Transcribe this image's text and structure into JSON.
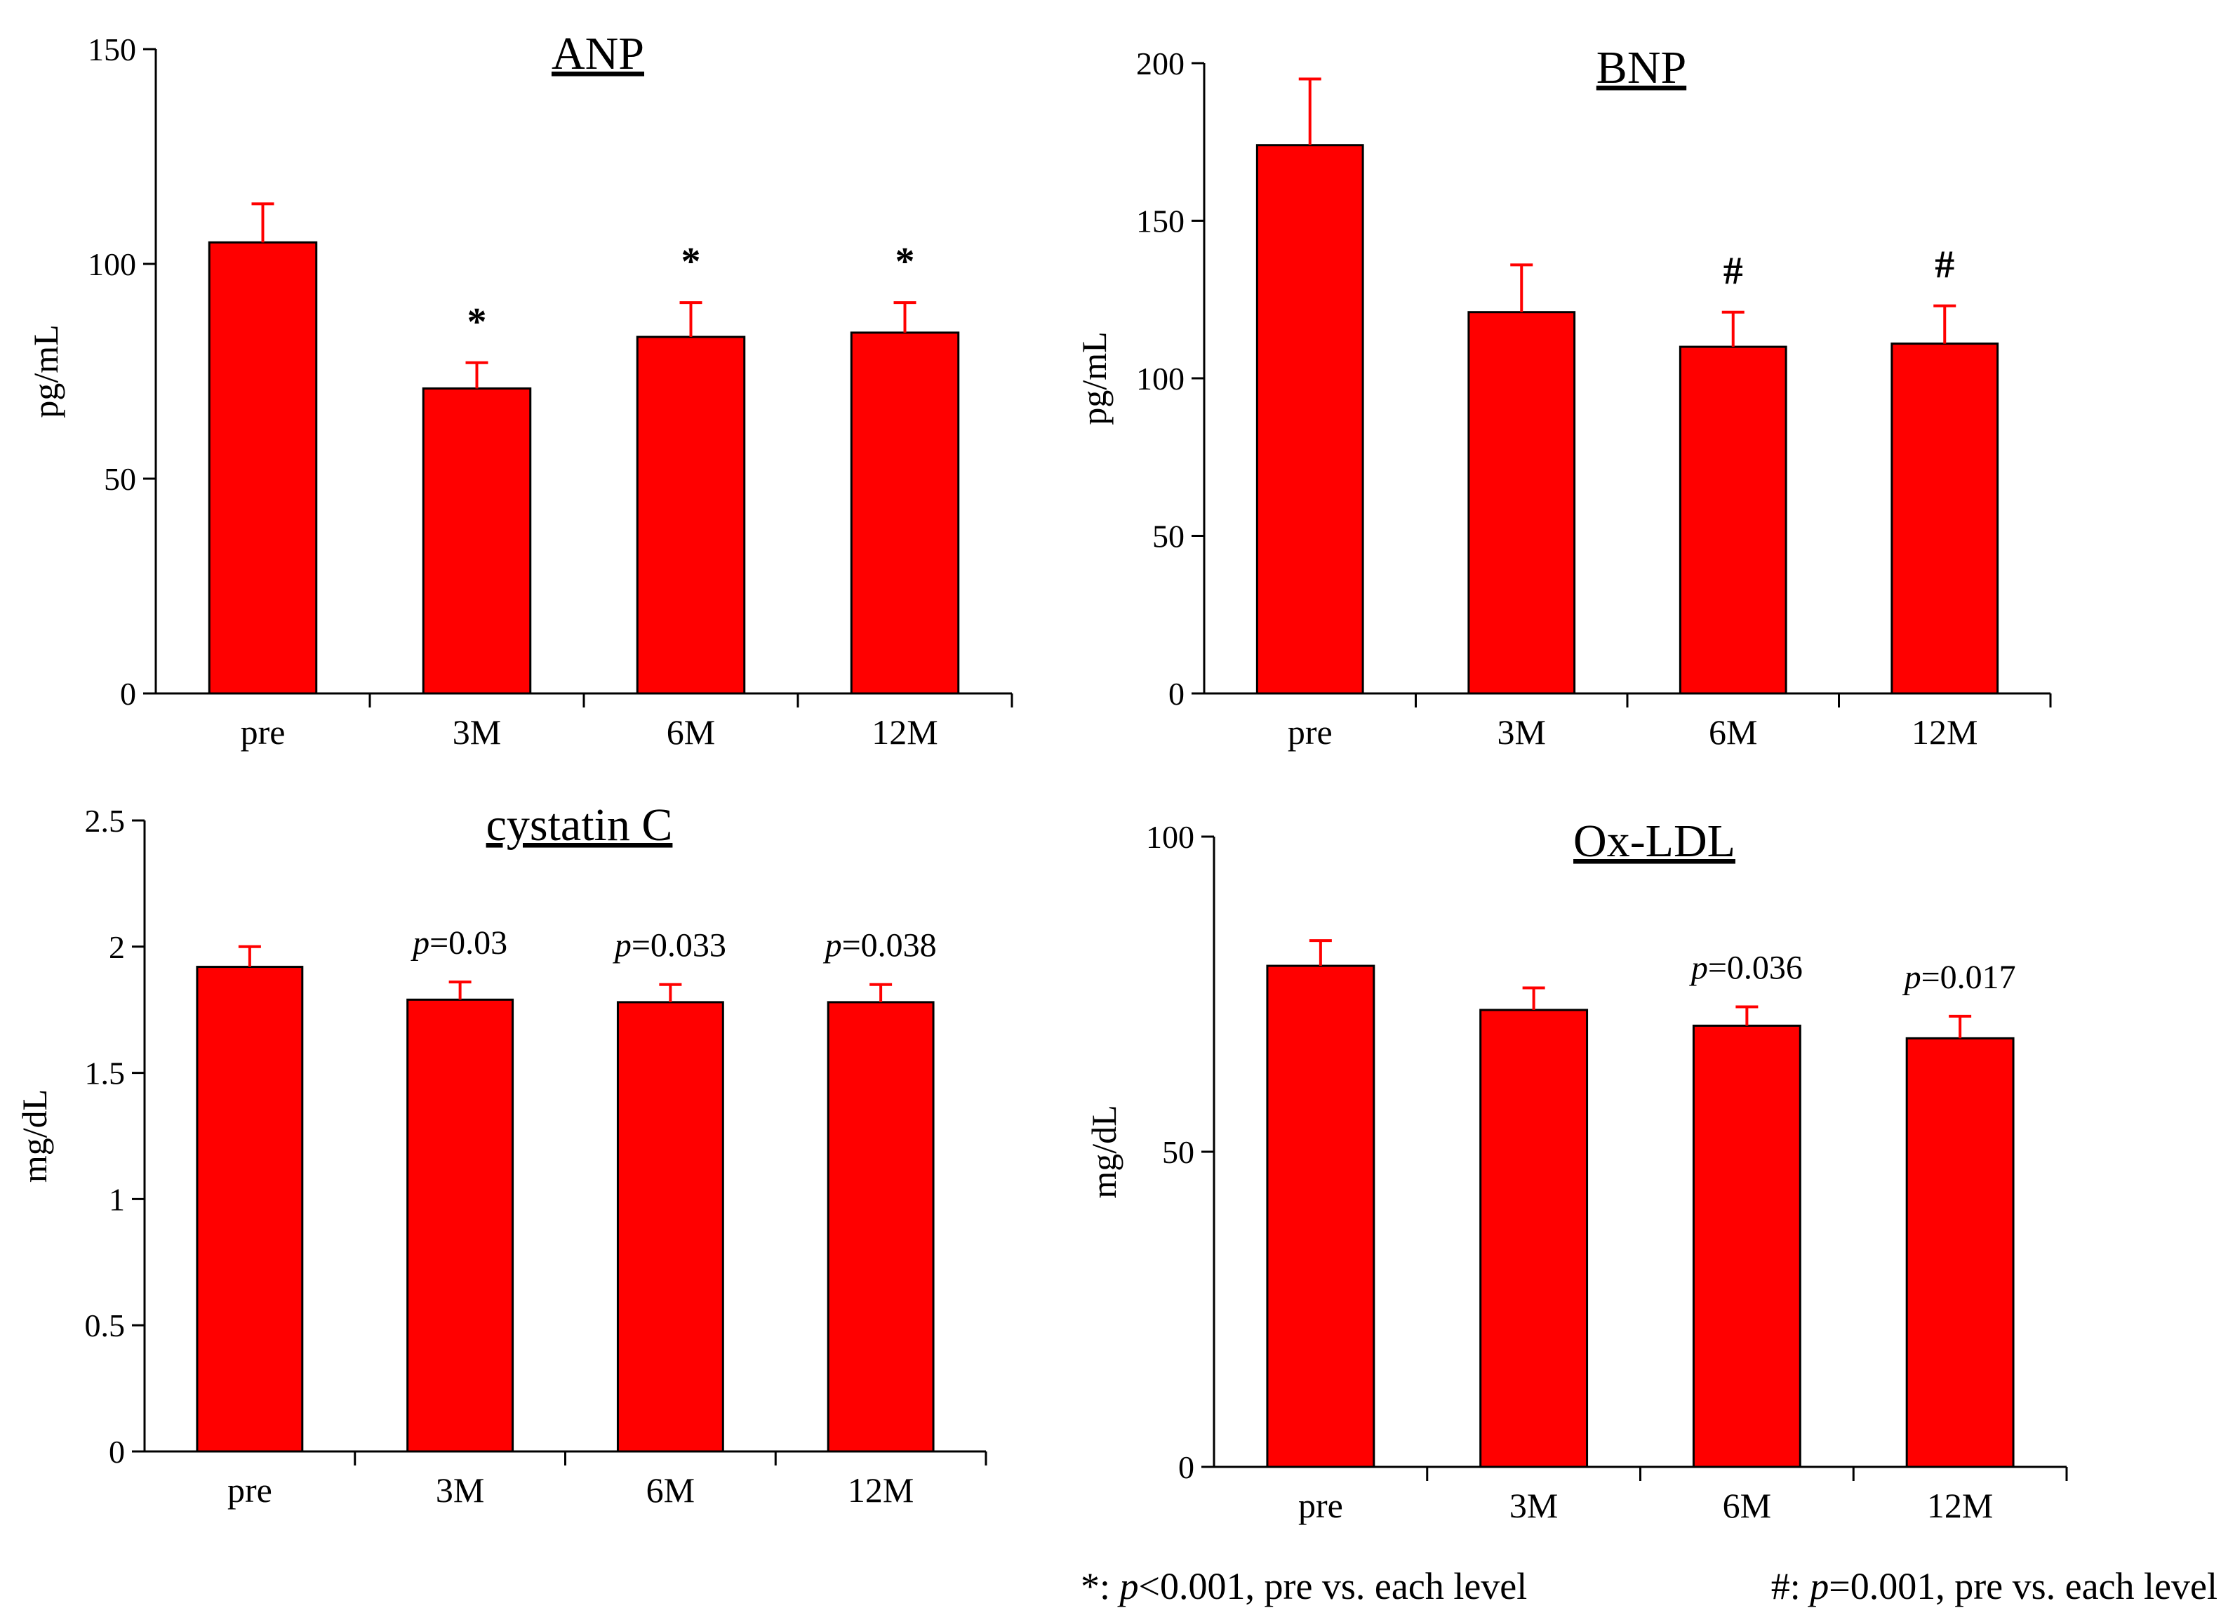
{
  "colors": {
    "bar": "#ff0000",
    "axis": "#000000",
    "error_bar": "#ff0000"
  },
  "chart_data": [
    {
      "type": "bar",
      "title": "ANP",
      "xlabel": "",
      "ylabel": "pg/mL",
      "categories": [
        "pre",
        "3M",
        "6M",
        "12M"
      ],
      "values": [
        105,
        71,
        83,
        84
      ],
      "errors": [
        9,
        6,
        8,
        7
      ],
      "ylim": [
        0,
        150
      ],
      "yticks": [
        0,
        50,
        100,
        150
      ],
      "ytick_labels": [
        "0",
        "50",
        "100",
        "150"
      ],
      "annotations": [
        "",
        "*",
        "*",
        "*"
      ],
      "annotation_style": "bold"
    },
    {
      "type": "bar",
      "title": "BNP",
      "xlabel": "",
      "ylabel": "pg/mL",
      "categories": [
        "pre",
        "3M",
        "6M",
        "12M"
      ],
      "values": [
        174,
        121,
        110,
        111
      ],
      "errors": [
        21,
        15,
        11,
        12
      ],
      "ylim": [
        0,
        200
      ],
      "yticks": [
        0,
        50,
        100,
        150,
        200
      ],
      "ytick_labels": [
        "0",
        "50",
        "100",
        "150",
        "200"
      ],
      "annotations": [
        "",
        "",
        "#",
        "#"
      ],
      "annotation_style": "bold"
    },
    {
      "type": "bar",
      "title": "cystatin C",
      "xlabel": "",
      "ylabel": "mg/dL",
      "categories": [
        "pre",
        "3M",
        "6M",
        "12M"
      ],
      "values": [
        1.92,
        1.79,
        1.78,
        1.78
      ],
      "errors": [
        0.08,
        0.07,
        0.07,
        0.07
      ],
      "ylim": [
        0,
        2.5
      ],
      "yticks": [
        0,
        0.5,
        1,
        1.5,
        2,
        2.5
      ],
      "ytick_labels": [
        "0",
        "0.5",
        "1",
        "1.5",
        "2",
        "2.5"
      ],
      "annotations": [
        "",
        "p=0.03",
        "p=0.033",
        "p=0.038"
      ],
      "annotation_style": "pvalue"
    },
    {
      "type": "bar",
      "title": "Ox-LDL",
      "xlabel": "",
      "ylabel": "mg/dL",
      "categories": [
        "pre",
        "3M",
        "6M",
        "12M"
      ],
      "values": [
        79.5,
        72.5,
        70,
        68
      ],
      "errors": [
        4,
        3.5,
        3,
        3.5
      ],
      "ylim": [
        0,
        100
      ],
      "yticks": [
        0,
        50,
        100
      ],
      "ytick_labels": [
        "0",
        "50",
        "100"
      ],
      "annotations": [
        "",
        "",
        "p=0.036",
        "p=0.017"
      ],
      "annotation_style": "pvalue"
    }
  ],
  "footnote": {
    "star": {
      "symbol": "*: ",
      "p": "p",
      "text": "<0.001, pre vs. each level"
    },
    "hash": {
      "symbol": "#: ",
      "p": "p",
      "text": "=0.001, pre vs. each level"
    }
  }
}
